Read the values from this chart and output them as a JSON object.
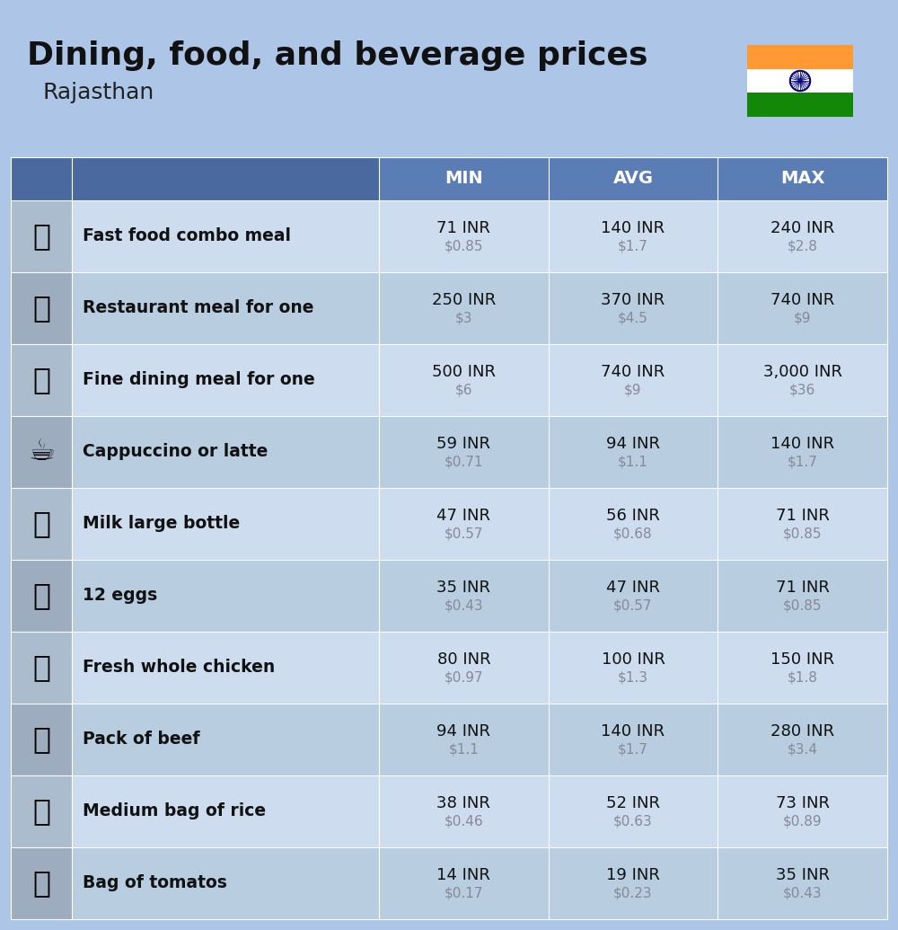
{
  "title": "Dining, food, and beverage prices",
  "subtitle": "Rajasthan",
  "bg_color": "#adc6e8",
  "header_color": "#5b7db5",
  "header_text_color": "#ffffff",
  "row_colors": [
    "#cddcee",
    "#b8cde0"
  ],
  "icon_col_color_odd": "#b8cde0",
  "icon_col_color_even": "#a8bdd0",
  "usd_color": "#888899",
  "text_color": "#111111",
  "col_headers": [
    "MIN",
    "AVG",
    "MAX"
  ],
  "rows": [
    {
      "label": "Fast food combo meal",
      "min_inr": "71 INR",
      "min_usd": "$0.85",
      "avg_inr": "140 INR",
      "avg_usd": "$1.7",
      "max_inr": "240 INR",
      "max_usd": "$2.8"
    },
    {
      "label": "Restaurant meal for one",
      "min_inr": "250 INR",
      "min_usd": "$3",
      "avg_inr": "370 INR",
      "avg_usd": "$4.5",
      "max_inr": "740 INR",
      "max_usd": "$9"
    },
    {
      "label": "Fine dining meal for one",
      "min_inr": "500 INR",
      "min_usd": "$6",
      "avg_inr": "740 INR",
      "avg_usd": "$9",
      "max_inr": "3,000 INR",
      "max_usd": "$36"
    },
    {
      "label": "Cappuccino or latte",
      "min_inr": "59 INR",
      "min_usd": "$0.71",
      "avg_inr": "94 INR",
      "avg_usd": "$1.1",
      "max_inr": "140 INR",
      "max_usd": "$1.7"
    },
    {
      "label": "Milk large bottle",
      "min_inr": "47 INR",
      "min_usd": "$0.57",
      "avg_inr": "56 INR",
      "avg_usd": "$0.68",
      "max_inr": "71 INR",
      "max_usd": "$0.85"
    },
    {
      "label": "12 eggs",
      "min_inr": "35 INR",
      "min_usd": "$0.43",
      "avg_inr": "47 INR",
      "avg_usd": "$0.57",
      "max_inr": "71 INR",
      "max_usd": "$0.85"
    },
    {
      "label": "Fresh whole chicken",
      "min_inr": "80 INR",
      "min_usd": "$0.97",
      "avg_inr": "100 INR",
      "avg_usd": "$1.3",
      "max_inr": "150 INR",
      "max_usd": "$1.8"
    },
    {
      "label": "Pack of beef",
      "min_inr": "94 INR",
      "min_usd": "$1.1",
      "avg_inr": "140 INR",
      "avg_usd": "$1.7",
      "max_inr": "280 INR",
      "max_usd": "$3.4"
    },
    {
      "label": "Medium bag of rice",
      "min_inr": "38 INR",
      "min_usd": "$0.46",
      "avg_inr": "52 INR",
      "avg_usd": "$0.63",
      "max_inr": "73 INR",
      "max_usd": "$0.89"
    },
    {
      "label": "Bag of tomatos",
      "min_inr": "14 INR",
      "min_usd": "$0.17",
      "avg_inr": "19 INR",
      "avg_usd": "$0.23",
      "max_inr": "35 INR",
      "max_usd": "$0.43"
    }
  ]
}
